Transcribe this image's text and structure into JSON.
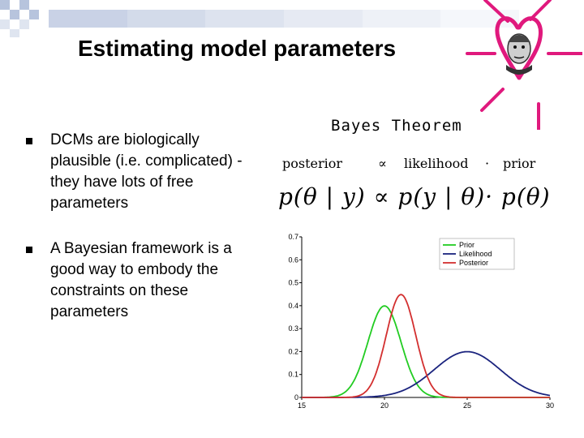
{
  "slide": {
    "title": "Estimating model parameters",
    "bullets": [
      "DCMs are biologically plausible (i.e. complicated) - they have lots of free parameters",
      "A Bayesian framework is a good way to embody the constraints on these parameters"
    ],
    "bayes": {
      "heading": "Bayes Theorem",
      "posterior": "posterior",
      "proportional": "∝",
      "likelihood": "likelihood",
      "dot": "·",
      "prior": "prior",
      "formula": "p(θ | y) ∝ p(y | θ)· p(θ)"
    },
    "colors": {
      "accent_magenta": "#e0197d",
      "checker_blue": "#b7c4dd",
      "prior_color": "#22cc22",
      "likelihood_color": "#1a237e",
      "posterior_color": "#d32f2f"
    }
  },
  "chart_data": {
    "type": "line",
    "title": "",
    "xlabel": "",
    "ylabel": "",
    "xlim": [
      15,
      30
    ],
    "ylim": [
      0,
      0.7
    ],
    "xticks": [
      15,
      20,
      25,
      30
    ],
    "yticks": [
      0,
      0.1,
      0.2,
      0.3,
      0.4,
      0.5,
      0.6,
      0.7
    ],
    "grid": false,
    "legend": "top-right",
    "series": [
      {
        "name": "Prior",
        "color": "#22cc22",
        "mean": 20,
        "sd": 1.0,
        "x": [
          16,
          17,
          18,
          19,
          19.5,
          20,
          20.5,
          21,
          22,
          23,
          24
        ],
        "y": [
          0.0,
          0.004,
          0.054,
          0.242,
          0.352,
          0.399,
          0.352,
          0.242,
          0.054,
          0.004,
          0.0
        ]
      },
      {
        "name": "Likelihood",
        "color": "#1a237e",
        "mean": 25,
        "sd": 2.0,
        "x": [
          18,
          19,
          20,
          21,
          22,
          23,
          24,
          25,
          26,
          27,
          28,
          29,
          30
        ],
        "y": [
          0.0,
          0.002,
          0.009,
          0.027,
          0.065,
          0.121,
          0.176,
          0.199,
          0.176,
          0.121,
          0.065,
          0.027,
          0.009
        ]
      },
      {
        "name": "Posterior",
        "color": "#d32f2f",
        "mean": 21,
        "sd": 0.89,
        "x": [
          18,
          19,
          20,
          20.5,
          21,
          21.5,
          22,
          23,
          24
        ],
        "y": [
          0.0,
          0.036,
          0.24,
          0.384,
          0.447,
          0.384,
          0.24,
          0.036,
          0.0
        ]
      }
    ]
  }
}
